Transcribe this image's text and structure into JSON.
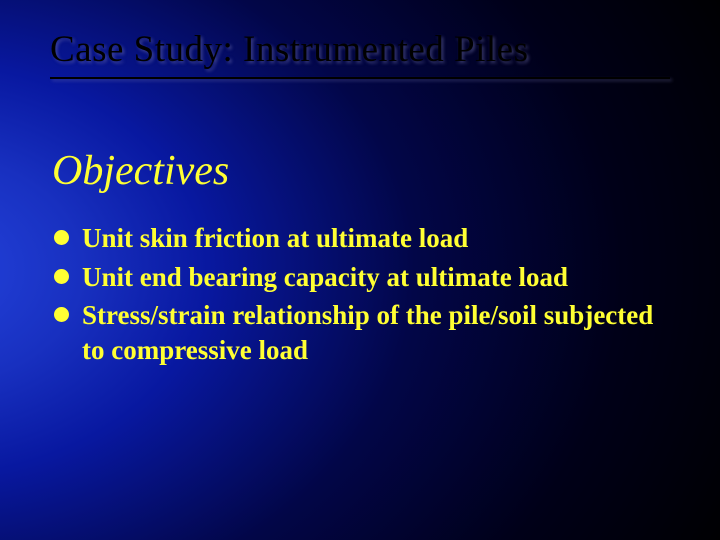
{
  "slide": {
    "background": {
      "gradient_center": "#2545e0",
      "gradient_mid1": "#1830c0",
      "gradient_mid2": "#0818a0",
      "gradient_mid3": "#020648",
      "gradient_edge": "#000000"
    },
    "title": {
      "text": "Case Study: Instrumented Piles",
      "color": "#000000",
      "fontsize": 37,
      "font_family": "Times New Roman"
    },
    "underline_color": "#000000",
    "subtitle": {
      "text": "Objectives",
      "color": "#ffff33",
      "fontsize": 42,
      "font_style": "italic"
    },
    "bullets": {
      "color": "#ffff33",
      "marker": "filled-circle",
      "marker_color": "#ffff33",
      "fontsize": 27,
      "items": [
        {
          "segments": [
            {
              "text": "Unit ",
              "weight": "bold"
            },
            {
              "text": "skin friction ",
              "weight": "bold"
            },
            {
              "text": "at ultimate load",
              "weight": "bold"
            }
          ]
        },
        {
          "segments": [
            {
              "text": "Unit ",
              "weight": "bold"
            },
            {
              "text": "end bearing ",
              "weight": "bold"
            },
            {
              "text": "capacity at ultimate load",
              "weight": "bold"
            }
          ]
        },
        {
          "segments": [
            {
              "text": "Stress/strain relationship ",
              "weight": "bold"
            },
            {
              "text": "of the pile/soil subjected to compressive load",
              "weight": "bold"
            }
          ]
        }
      ],
      "flat": {
        "b0": "Unit skin friction at ultimate load",
        "b1": "Unit end bearing capacity at ultimate load",
        "b2": "Stress/strain relationship of the pile/soil subjected to compressive load"
      }
    }
  }
}
